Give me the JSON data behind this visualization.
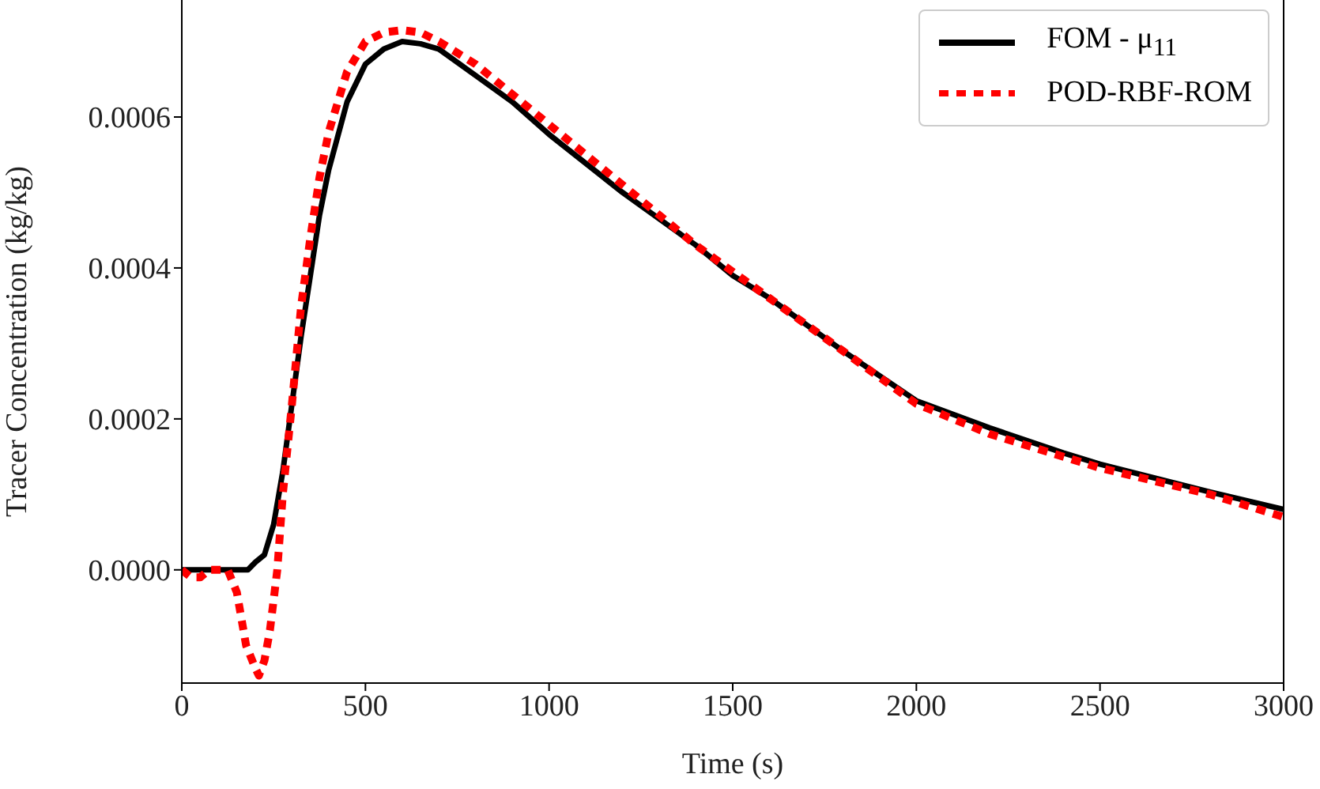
{
  "chart_data": {
    "type": "line",
    "xlabel": "Time (s)",
    "ylabel": "Tracer Concentration (kg/kg)",
    "xlim": [
      0,
      3000
    ],
    "xticks": [
      0,
      500,
      1000,
      1500,
      2000,
      2500,
      3000
    ],
    "ylim": [
      -0.00015,
      0.000755
    ],
    "yticks": [
      {
        "value": 0,
        "label": "0.0000"
      },
      {
        "value": 0.0002,
        "label": "0.0002"
      },
      {
        "value": 0.0004,
        "label": "0.0004"
      },
      {
        "value": 0.0006,
        "label": "0.0006"
      }
    ],
    "legend": "top right",
    "marker": "none",
    "series": [
      {
        "name": "FOM - μ$_{11}$",
        "color": "#000000",
        "line_style": "solid",
        "x": [
          0,
          180,
          200,
          225,
          250,
          275,
          300,
          325,
          350,
          375,
          400,
          450,
          500,
          550,
          600,
          650,
          700,
          800,
          900,
          1000,
          1200,
          1400,
          1500,
          1600,
          1800,
          2000,
          2200,
          2400,
          2500,
          2800,
          3000
        ],
        "values": [
          0,
          0,
          1e-05,
          2e-05,
          6e-05,
          0.00013,
          0.00022,
          0.00031,
          0.00039,
          0.00047,
          0.00053,
          0.00062,
          0.00067,
          0.00069,
          0.0007,
          0.000697,
          0.00069,
          0.000655,
          0.00062,
          0.000577,
          0.0005,
          0.00043,
          0.00039,
          0.00036,
          0.00029,
          0.000224,
          0.000188,
          0.000155,
          0.00014,
          0.000103,
          8e-05
        ]
      },
      {
        "name": "POD-RBF-ROM",
        "color": "#ff0000",
        "line_style": "dotted",
        "x": [
          0,
          25,
          50,
          75,
          100,
          125,
          150,
          175,
          200,
          210,
          225,
          240,
          260,
          275,
          300,
          325,
          350,
          375,
          400,
          450,
          500,
          550,
          600,
          650,
          700,
          800,
          900,
          1000,
          1200,
          1400,
          1600,
          1800,
          2000,
          2200,
          2500,
          2800,
          3000
        ],
        "values": [
          0,
          -1e-05,
          -1e-05,
          0,
          0,
          0,
          -3e-05,
          -0.0001,
          -0.00013,
          -0.00014,
          -0.00012,
          -8e-05,
          0,
          0.0001,
          0.00022,
          0.00035,
          0.00044,
          0.00052,
          0.00058,
          0.00066,
          0.0007,
          0.000712,
          0.000715,
          0.000712,
          0.0007,
          0.00067,
          0.00063,
          0.00059,
          0.00051,
          0.00043,
          0.00036,
          0.00029,
          0.00022,
          0.00018,
          0.000135,
          0.0001,
          7e-05
        ]
      }
    ]
  }
}
